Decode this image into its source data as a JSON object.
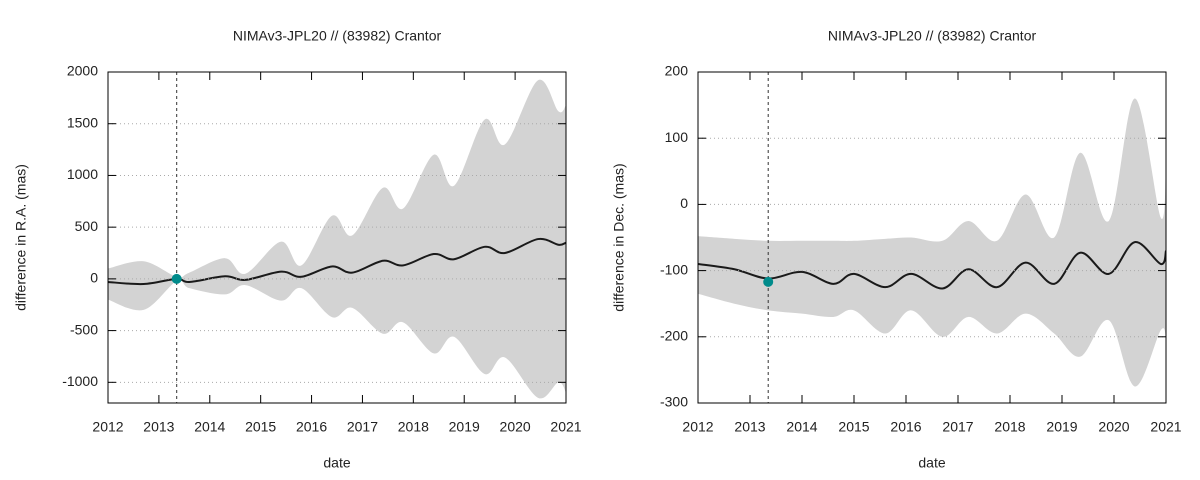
{
  "chart_data": [
    {
      "type": "line",
      "title": "NIMAv3-JPL20 // (83982) Crantor",
      "x_label": "date",
      "y_label": "difference in R.A. (mas)",
      "x": [
        2012,
        2012.7,
        2013.35,
        2013.6,
        2014.3,
        2014.7,
        2015.4,
        2015.8,
        2016.4,
        2016.8,
        2017.4,
        2017.8,
        2018.4,
        2018.8,
        2019.4,
        2019.8,
        2020.45,
        2020.85,
        2021
      ],
      "values": [
        -30,
        -50,
        0,
        -30,
        25,
        -10,
        70,
        20,
        120,
        60,
        175,
        130,
        240,
        190,
        310,
        250,
        385,
        330,
        350
      ],
      "color": "#1a1a1a",
      "band": {
        "upper": [
          100,
          170,
          20,
          60,
          200,
          50,
          360,
          130,
          610,
          420,
          880,
          680,
          1200,
          900,
          1540,
          1300,
          1920,
          1620,
          1680
        ],
        "lower": [
          -200,
          -300,
          -20,
          -90,
          -150,
          -60,
          -210,
          -90,
          -370,
          -280,
          -530,
          -420,
          -720,
          -560,
          -920,
          -760,
          -1150,
          -1000,
          -1100
        ],
        "color": "#d3d3d3"
      },
      "point": {
        "x": 2013.35,
        "y": 0,
        "color": "#008b8b"
      },
      "vline": 2013.35,
      "xlim": [
        2012,
        2021
      ],
      "xticks": [
        2012,
        2013,
        2014,
        2015,
        2016,
        2017,
        2018,
        2019,
        2020,
        2021
      ],
      "ylim": [
        -1200,
        2000
      ],
      "yticks": [
        -1000,
        -500,
        0,
        500,
        1000,
        1500,
        2000
      ],
      "grid": true
    },
    {
      "type": "line",
      "title": "NIMAv3-JPL20 // (83982) Crantor",
      "x_label": "date",
      "y_label": "difference in Dec. (mas)",
      "x": [
        2012,
        2012.7,
        2013.35,
        2014.0,
        2014.6,
        2015.0,
        2015.6,
        2016.1,
        2016.7,
        2017.2,
        2017.75,
        2018.3,
        2018.85,
        2019.35,
        2019.9,
        2020.4,
        2020.9,
        2021
      ],
      "values": [
        -90,
        -98,
        -112,
        -102,
        -120,
        -105,
        -125,
        -105,
        -127,
        -98,
        -125,
        -88,
        -120,
        -73,
        -105,
        -57,
        -90,
        -70
      ],
      "color": "#1a1a1a",
      "band": {
        "upper": [
          -48,
          -52,
          -55,
          -55,
          -55,
          -55,
          -52,
          -50,
          -55,
          -25,
          -55,
          15,
          -50,
          78,
          -25,
          160,
          -20,
          60
        ],
        "lower": [
          -135,
          -150,
          -160,
          -165,
          -170,
          -160,
          -195,
          -160,
          -200,
          -170,
          -195,
          -165,
          -195,
          -230,
          -175,
          -275,
          -190,
          -205
        ],
        "color": "#d3d3d3"
      },
      "point": {
        "x": 2013.35,
        "y": -117,
        "color": "#008b8b"
      },
      "vline": 2013.35,
      "xlim": [
        2012,
        2021
      ],
      "xticks": [
        2012,
        2013,
        2014,
        2015,
        2016,
        2017,
        2018,
        2019,
        2020,
        2021
      ],
      "ylim": [
        -300,
        200
      ],
      "yticks": [
        -300,
        -200,
        -100,
        0,
        100,
        200
      ],
      "grid": true
    }
  ]
}
